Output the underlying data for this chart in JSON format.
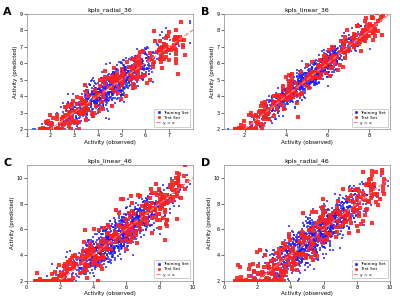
{
  "plots": [
    {
      "label": "A",
      "title": "kpls_radial_36",
      "xlim": [
        1,
        8
      ],
      "ylim": [
        2,
        9
      ],
      "xticks": [
        1,
        2,
        3,
        4,
        5,
        6,
        7
      ],
      "yticks": [
        2,
        3,
        4,
        5,
        6,
        7,
        8,
        9
      ],
      "line_range": [
        1,
        8.5
      ],
      "noise_train": 0.5,
      "noise_test": 0.6,
      "n_train": 900,
      "n_test": 250,
      "xcenter": 4.5,
      "xspread": 1.1
    },
    {
      "label": "B",
      "title": "kpls_linear_36",
      "xlim": [
        1,
        9
      ],
      "ylim": [
        2,
        9
      ],
      "xticks": [
        2,
        4,
        6,
        8
      ],
      "yticks": [
        2,
        3,
        4,
        5,
        6,
        7,
        8,
        9
      ],
      "line_range": [
        1,
        9.2
      ],
      "noise_train": 0.4,
      "noise_test": 0.5,
      "n_train": 900,
      "n_test": 250,
      "xcenter": 5.0,
      "xspread": 1.2
    },
    {
      "label": "C",
      "title": "kpls_linear_46",
      "xlim": [
        0,
        10
      ],
      "ylim": [
        2,
        11
      ],
      "xticks": [
        0,
        2,
        4,
        6,
        8,
        10
      ],
      "yticks": [
        2,
        4,
        6,
        8,
        10
      ],
      "line_range": [
        0,
        11
      ],
      "noise_train": 0.75,
      "noise_test": 0.9,
      "n_train": 1100,
      "n_test": 300,
      "xcenter": 5.5,
      "xspread": 1.5
    },
    {
      "label": "D",
      "title": "kpls_radial_46",
      "xlim": [
        0,
        10
      ],
      "ylim": [
        2,
        11
      ],
      "xticks": [
        0,
        2,
        4,
        6,
        8,
        10
      ],
      "yticks": [
        2,
        4,
        6,
        8,
        10
      ],
      "line_range": [
        0,
        11
      ],
      "noise_train": 0.8,
      "noise_test": 1.0,
      "n_train": 1100,
      "n_test": 300,
      "xcenter": 5.5,
      "xspread": 1.5
    }
  ],
  "train_color": "#1A1AFF",
  "test_color": "#FF2020",
  "line_color": "#FF8080",
  "bg_color": "#FFFFFF",
  "marker_size": 4,
  "marker": "s",
  "xlabel": "Activity (observed)",
  "ylabel": "Activity (predicted)"
}
